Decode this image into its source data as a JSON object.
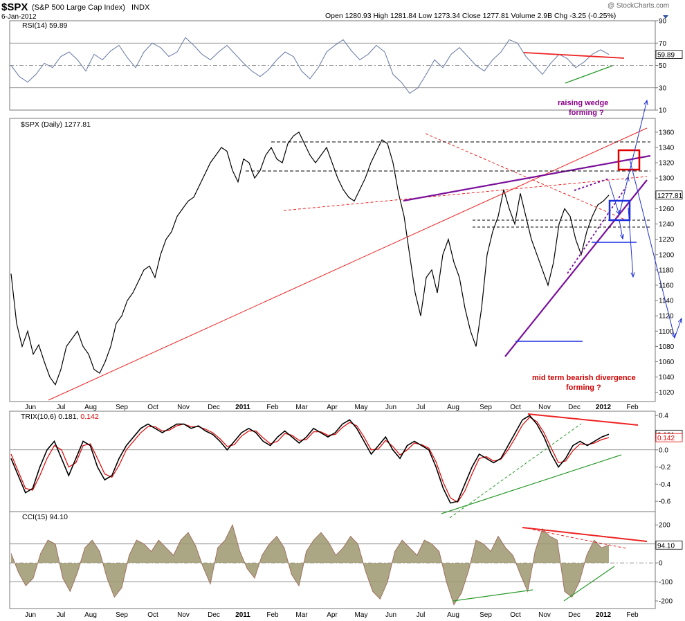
{
  "header": {
    "symbol": "$SPX",
    "name": "(S&P 500 Large Cap Index)",
    "exchange": "INDX",
    "date": "6-Jan-2012",
    "watermark": "@ StockCharts.com",
    "quote": "Open 1280.93  High 1281.84  Low 1273.34  Close 1277.81  Volume 2.9B  Chg -3.25 (-0.25%)"
  },
  "colors": {
    "price": "#000000",
    "rsi": "#7080a8",
    "trix_signal": "#e00000",
    "trendline_red": "#ee2222",
    "trendline_purple": "#7a0f9a",
    "trendline_green": "#2a9a2a",
    "projection": "#2030d0",
    "box_red": "#e00000",
    "box_blue": "#1a2ee0",
    "cci_fill": "#9c9870",
    "annotation_purple": "#880088",
    "annotation_red": "#cc0000"
  },
  "chart_data": [
    {
      "type": "line",
      "panel": "rsi",
      "title": "RSI(14) 59.89",
      "y_ticks": [
        90,
        70,
        50,
        30,
        10
      ],
      "ylim": [
        10,
        90
      ],
      "reference_lines": [
        70,
        50,
        30
      ],
      "last_value": "59.89",
      "series": [
        {
          "name": "RSI(14)",
          "values": [
            50,
            40,
            35,
            42,
            52,
            48,
            58,
            62,
            55,
            45,
            60,
            55,
            63,
            68,
            57,
            48,
            62,
            70,
            66,
            58,
            62,
            75,
            68,
            60,
            55,
            62,
            68,
            60,
            52,
            45,
            40,
            46,
            55,
            62,
            58,
            45,
            38,
            48,
            62,
            68,
            73,
            63,
            55,
            60,
            68,
            62,
            42,
            35,
            25,
            30,
            42,
            55,
            48,
            60,
            66,
            58,
            50,
            45,
            55,
            62,
            73,
            70,
            58,
            50,
            42,
            52,
            60,
            56,
            48,
            53,
            60,
            64,
            59.89
          ]
        }
      ]
    },
    {
      "type": "line",
      "panel": "price",
      "title": "$SPX (Daily) 1277.81",
      "y_ticks": [
        1360,
        1340,
        1320,
        1300,
        1280,
        1260,
        1240,
        1220,
        1200,
        1180,
        1160,
        1140,
        1120,
        1100,
        1080,
        1060,
        1040,
        1020
      ],
      "ylim": [
        1008,
        1378
      ],
      "x_ticks": [
        "Jun",
        "Jul",
        "Aug",
        "Sep",
        "Oct",
        "Nov",
        "Dec",
        "2011",
        "Feb",
        "Mar",
        "Apr",
        "May",
        "Jun",
        "Jul",
        "Aug",
        "Sep",
        "Oct",
        "Nov",
        "Dec",
        "2012",
        "Feb"
      ],
      "last_value": "1277.81",
      "series": [
        {
          "name": "$SPX",
          "values": [
            1175,
            1110,
            1080,
            1100,
            1070,
            1082,
            1060,
            1040,
            1030,
            1050,
            1080,
            1090,
            1100,
            1080,
            1070,
            1050,
            1045,
            1060,
            1080,
            1110,
            1120,
            1140,
            1150,
            1165,
            1180,
            1185,
            1170,
            1200,
            1220,
            1230,
            1250,
            1260,
            1270,
            1275,
            1290,
            1305,
            1320,
            1330,
            1340,
            1335,
            1310,
            1295,
            1325,
            1320,
            1300,
            1310,
            1330,
            1340,
            1325,
            1320,
            1345,
            1355,
            1360,
            1345,
            1330,
            1320,
            1330,
            1340,
            1320,
            1300,
            1285,
            1275,
            1270,
            1285,
            1300,
            1320,
            1335,
            1350,
            1345,
            1320,
            1280,
            1250,
            1200,
            1150,
            1120,
            1170,
            1180,
            1150,
            1200,
            1220,
            1190,
            1170,
            1130,
            1100,
            1080,
            1130,
            1200,
            1230,
            1250,
            1285,
            1260,
            1240,
            1280,
            1250,
            1220,
            1200,
            1180,
            1160,
            1190,
            1240,
            1260,
            1250,
            1220,
            1200,
            1230,
            1250,
            1265,
            1270,
            1277.81
          ]
        }
      ],
      "annotations": [
        "raising wedge",
        "forming ?",
        "mid term bearish divergence",
        "forming ?"
      ]
    },
    {
      "type": "line",
      "panel": "trix",
      "title": "TRIX(10,6) 0.181, 0.142",
      "y_ticks": [
        0.4,
        0.2,
        0.0,
        -0.2,
        -0.4,
        -0.6
      ],
      "ylim": [
        -0.72,
        0.45
      ],
      "last_values": [
        "0.181",
        "0.142"
      ],
      "series": [
        {
          "name": "TRIX(10,6)",
          "values": [
            -0.1,
            -0.3,
            -0.5,
            -0.45,
            -0.2,
            0.0,
            0.1,
            -0.1,
            -0.3,
            -0.1,
            0.1,
            0.05,
            -0.2,
            -0.35,
            -0.3,
            -0.1,
            0.05,
            0.15,
            0.25,
            0.3,
            0.25,
            0.2,
            0.25,
            0.3,
            0.3,
            0.25,
            0.28,
            0.22,
            0.18,
            0.1,
            0.0,
            0.1,
            0.2,
            0.25,
            0.2,
            0.1,
            0.05,
            0.15,
            0.22,
            0.15,
            0.08,
            0.15,
            0.25,
            0.2,
            0.15,
            0.2,
            0.3,
            0.35,
            0.25,
            0.1,
            -0.05,
            0.05,
            0.15,
            0.0,
            -0.1,
            0.05,
            0.1,
            0.05,
            0.0,
            -0.2,
            -0.45,
            -0.62,
            -0.6,
            -0.4,
            -0.2,
            -0.05,
            -0.1,
            -0.15,
            -0.1,
            0.05,
            0.2,
            0.35,
            0.4,
            0.3,
            0.15,
            -0.05,
            -0.2,
            -0.1,
            0.05,
            0.1,
            0.05,
            0.1,
            0.15,
            0.181
          ]
        },
        {
          "name": "signal",
          "values": [
            -0.05,
            -0.25,
            -0.45,
            -0.47,
            -0.3,
            -0.1,
            0.05,
            0.0,
            -0.2,
            -0.15,
            0.05,
            0.07,
            -0.1,
            -0.28,
            -0.32,
            -0.18,
            0.0,
            0.1,
            0.2,
            0.27,
            0.27,
            0.22,
            0.23,
            0.28,
            0.3,
            0.27,
            0.27,
            0.24,
            0.2,
            0.13,
            0.04,
            0.06,
            0.16,
            0.22,
            0.22,
            0.14,
            0.07,
            0.1,
            0.19,
            0.17,
            0.11,
            0.12,
            0.21,
            0.21,
            0.17,
            0.18,
            0.26,
            0.32,
            0.28,
            0.15,
            0.0,
            0.01,
            0.11,
            0.04,
            -0.06,
            0.0,
            0.08,
            0.06,
            0.02,
            -0.14,
            -0.38,
            -0.56,
            -0.61,
            -0.48,
            -0.28,
            -0.1,
            -0.08,
            -0.13,
            -0.11,
            0.0,
            0.14,
            0.29,
            0.38,
            0.33,
            0.2,
            0.02,
            -0.15,
            -0.13,
            -0.01,
            0.07,
            0.06,
            0.08,
            0.12,
            0.142
          ]
        }
      ]
    },
    {
      "type": "area",
      "panel": "cci",
      "title": "CCI(15) 94.10",
      "y_ticks": [
        200,
        100,
        0,
        -100,
        -200
      ],
      "ylim": [
        -240,
        270
      ],
      "reference_lines": [
        100,
        0,
        -100
      ],
      "last_value": "94.10",
      "series": [
        {
          "name": "CCI(15)",
          "values": [
            50,
            -50,
            -120,
            -80,
            50,
            120,
            100,
            -80,
            -150,
            -50,
            80,
            120,
            60,
            -80,
            -180,
            -130,
            40,
            120,
            100,
            60,
            120,
            80,
            40,
            120,
            160,
            90,
            -20,
            -110,
            80,
            120,
            200,
            60,
            -30,
            -80,
            40,
            100,
            140,
            80,
            -60,
            -120,
            60,
            120,
            160,
            110,
            40,
            80,
            140,
            100,
            -40,
            -150,
            -190,
            -100,
            60,
            120,
            80,
            40,
            120,
            100,
            60,
            -100,
            -220,
            -160,
            -40,
            120,
            100,
            60,
            140,
            80,
            40,
            -60,
            -150,
            60,
            180,
            140,
            120,
            -150,
            -180,
            -100,
            40,
            120,
            80,
            94.1
          ]
        }
      ]
    }
  ]
}
